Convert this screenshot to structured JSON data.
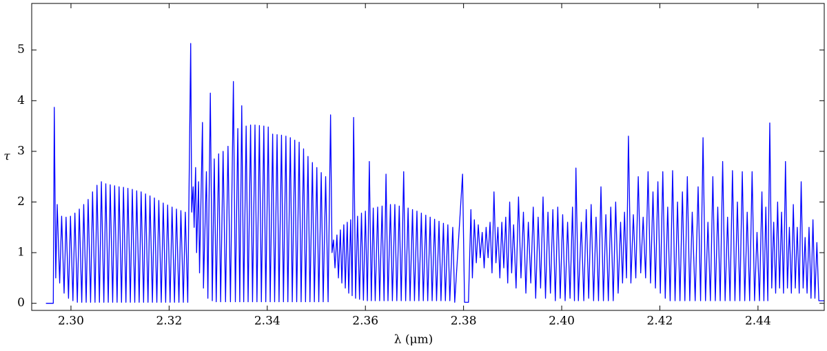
{
  "chart_data": {
    "type": "line",
    "xlabel": "λ (μm)",
    "ylabel": "τ",
    "color": "#0000ff",
    "xlim": [
      2.292,
      2.4535
    ],
    "ylim": [
      -0.14,
      5.92
    ],
    "xticks": [
      {
        "value": 2.3,
        "label": "2.30"
      },
      2.32,
      2.34,
      2.36,
      2.38,
      {
        "value": 2.4,
        "label": "2.40"
      },
      2.42,
      2.44
    ],
    "yticks": [
      0,
      1,
      2,
      3,
      4,
      5
    ],
    "x": [
      2.2949,
      2.2964,
      2.2966,
      2.2969,
      2.2972,
      2.2977,
      2.2981,
      2.2986,
      2.299,
      2.2995,
      2.2999,
      2.3004,
      2.3008,
      2.3013,
      2.3017,
      2.3022,
      2.3026,
      2.3031,
      2.3035,
      2.304,
      2.3044,
      2.3049,
      2.3053,
      2.3058,
      2.3062,
      2.3067,
      2.3071,
      2.3076,
      2.308,
      2.3085,
      2.3089,
      2.3094,
      2.3098,
      2.3103,
      2.3107,
      2.3112,
      2.3116,
      2.3121,
      2.3125,
      2.313,
      2.3134,
      2.3139,
      2.3143,
      2.3148,
      2.3152,
      2.3157,
      2.3161,
      2.3166,
      2.317,
      2.3175,
      2.3179,
      2.3184,
      2.3188,
      2.3193,
      2.3197,
      2.3202,
      2.3206,
      2.3211,
      2.3215,
      2.322,
      2.3224,
      2.3229,
      2.3233,
      2.3238,
      2.3244,
      2.3246,
      2.3249,
      2.3251,
      2.3254,
      2.3256,
      2.326,
      2.3262,
      2.3268,
      2.327,
      2.3276,
      2.3279,
      2.3284,
      2.3288,
      2.3292,
      2.3296,
      2.3301,
      2.3305,
      2.331,
      2.3315,
      2.332,
      2.3325,
      2.3331,
      2.3335,
      2.334,
      2.3344,
      2.3348,
      2.3352,
      2.3357,
      2.3361,
      2.3366,
      2.337,
      2.3375,
      2.3379,
      2.3384,
      2.3388,
      2.3393,
      2.3397,
      2.3402,
      2.3406,
      2.3411,
      2.3415,
      2.342,
      2.3424,
      2.3429,
      2.3433,
      2.3438,
      2.3442,
      2.3447,
      2.3451,
      2.3456,
      2.346,
      2.3465,
      2.3469,
      2.3474,
      2.3478,
      2.3483,
      2.3487,
      2.3492,
      2.3496,
      2.3501,
      2.3505,
      2.351,
      2.3514,
      2.3519,
      2.3524,
      2.3529,
      2.3532,
      2.3535,
      2.3538,
      2.3542,
      2.3545,
      2.3549,
      2.3552,
      2.3556,
      2.3559,
      2.3563,
      2.3566,
      2.357,
      2.3573,
      2.3576,
      2.358,
      2.3584,
      2.3588,
      2.3592,
      2.3596,
      2.36,
      2.3604,
      2.3608,
      2.3612,
      2.3616,
      2.362,
      2.3625,
      2.3629,
      2.3634,
      2.3638,
      2.3642,
      2.3646,
      2.3651,
      2.3655,
      2.366,
      2.3664,
      2.3669,
      2.3673,
      2.3678,
      2.3682,
      2.3687,
      2.3691,
      2.3696,
      2.37,
      2.3705,
      2.3709,
      2.3714,
      2.3718,
      2.3723,
      2.3727,
      2.3732,
      2.3736,
      2.3741,
      2.3745,
      2.375,
      2.3754,
      2.3759,
      2.3763,
      2.3768,
      2.3772,
      2.3778,
      2.3782,
      2.3798,
      2.3802,
      2.381,
      2.3815,
      2.3818,
      2.3822,
      2.3826,
      2.383,
      2.3834,
      2.3838,
      2.3842,
      2.3846,
      2.385,
      2.3854,
      2.3858,
      2.3862,
      2.3866,
      2.387,
      2.3874,
      2.3878,
      2.3882,
      2.3886,
      2.389,
      2.3894,
      2.3898,
      2.3902,
      2.3907,
      2.3912,
      2.3917,
      2.3922,
      2.3927,
      2.3932,
      2.3937,
      2.3942,
      2.3947,
      2.3952,
      2.3957,
      2.3962,
      2.3967,
      2.3972,
      2.3977,
      2.3982,
      2.3987,
      2.3992,
      2.3997,
      2.4002,
      2.4007,
      2.4012,
      2.4017,
      2.4022,
      2.4026,
      2.4029,
      2.4034,
      2.404,
      2.4045,
      2.405,
      2.4055,
      2.406,
      2.4065,
      2.407,
      2.4075,
      2.408,
      2.4085,
      2.409,
      2.4095,
      2.41,
      2.4105,
      2.411,
      2.4115,
      2.412,
      2.4124,
      2.4128,
      2.4132,
      2.4136,
      2.4141,
      2.4146,
      2.4151,
      2.4156,
      2.4161,
      2.4166,
      2.4171,
      2.4176,
      2.4181,
      2.4186,
      2.4191,
      2.4196,
      2.4201,
      2.4206,
      2.4211,
      2.4216,
      2.4221,
      2.4226,
      2.4231,
      2.4236,
      2.4241,
      2.4246,
      2.4251,
      2.4256,
      2.4261,
      2.4266,
      2.4272,
      2.4278,
      2.4283,
      2.4288,
      2.4293,
      2.4298,
      2.4303,
      2.4308,
      2.4313,
      2.4318,
      2.4323,
      2.4328,
      2.4333,
      2.4338,
      2.4343,
      2.4348,
      2.4353,
      2.4358,
      2.4363,
      2.4368,
      2.4373,
      2.4378,
      2.4383,
      2.4388,
      2.4393,
      2.4398,
      2.4403,
      2.4408,
      2.4412,
      2.4416,
      2.442,
      2.4424,
      2.4428,
      2.4432,
      2.4436,
      2.444,
      2.4444,
      2.4448,
      2.4452,
      2.4456,
      2.446,
      2.4464,
      2.4468,
      2.4472,
      2.4476,
      2.448,
      2.4484,
      2.4488,
      2.4492,
      2.4496,
      2.45,
      2.4504,
      2.4508,
      2.4512,
      2.4516,
      2.452,
      2.4524,
      2.4535
    ],
    "values": [
      0,
      0,
      3.87,
      0.5,
      1.95,
      0.4,
      1.72,
      0.2,
      1.7,
      0.1,
      1.72,
      0.05,
      1.78,
      0.02,
      1.86,
      0.02,
      1.95,
      0.02,
      2.05,
      0.02,
      2.2,
      0.02,
      2.33,
      0.02,
      2.4,
      0.02,
      2.36,
      0.02,
      2.34,
      0.02,
      2.32,
      0.02,
      2.3,
      0.02,
      2.29,
      0.02,
      2.27,
      0.02,
      2.25,
      0.02,
      2.22,
      0.02,
      2.2,
      0.02,
      2.16,
      0.02,
      2.12,
      0.02,
      2.08,
      0.02,
      2.03,
      0.02,
      1.98,
      0.02,
      1.94,
      0.02,
      1.9,
      0.02,
      1.86,
      0.02,
      1.83,
      0.02,
      1.8,
      0.02,
      5.13,
      1.8,
      2.3,
      1.5,
      2.68,
      1.0,
      2.4,
      0.6,
      3.57,
      0.3,
      2.6,
      0.1,
      4.15,
      0.05,
      2.85,
      0.03,
      2.95,
      0.03,
      3.0,
      0.03,
      3.1,
      0.03,
      4.38,
      0.03,
      3.45,
      0.03,
      3.9,
      0.03,
      3.5,
      0.03,
      3.52,
      0.03,
      3.52,
      0.03,
      3.51,
      0.03,
      3.5,
      0.03,
      3.48,
      0.03,
      3.34,
      0.03,
      3.33,
      0.03,
      3.32,
      0.03,
      3.3,
      0.03,
      3.27,
      0.03,
      3.22,
      0.03,
      3.18,
      0.03,
      3.05,
      0.03,
      2.9,
      0.03,
      2.78,
      0.03,
      2.68,
      0.03,
      2.58,
      0.03,
      2.5,
      0.03,
      3.72,
      1.0,
      1.25,
      0.7,
      1.35,
      0.5,
      1.45,
      0.4,
      1.55,
      0.3,
      1.6,
      0.2,
      1.65,
      0.15,
      3.67,
      0.1,
      1.72,
      0.08,
      1.78,
      0.06,
      1.82,
      0.05,
      2.8,
      0.05,
      1.88,
      0.05,
      1.9,
      0.05,
      1.92,
      0.05,
      2.55,
      0.05,
      1.95,
      0.05,
      1.95,
      0.05,
      1.92,
      0.05,
      2.6,
      0.05,
      1.88,
      0.05,
      1.85,
      0.05,
      1.82,
      0.05,
      1.78,
      0.05,
      1.74,
      0.05,
      1.7,
      0.05,
      1.66,
      0.05,
      1.62,
      0.05,
      1.58,
      0.05,
      1.55,
      0.05,
      1.5,
      0.02,
      2.55,
      0.02,
      0.02,
      1.85,
      0.5,
      1.65,
      0.8,
      1.55,
      0.9,
      1.4,
      0.7,
      1.5,
      0.9,
      1.6,
      0.6,
      2.2,
      0.8,
      1.5,
      0.5,
      1.6,
      0.7,
      1.7,
      0.4,
      2.0,
      0.6,
      1.55,
      0.3,
      2.1,
      0.5,
      1.8,
      0.2,
      1.6,
      0.4,
      1.9,
      0.1,
      1.7,
      0.3,
      2.1,
      0.1,
      1.8,
      0.2,
      1.85,
      0.05,
      1.9,
      0.1,
      1.75,
      0.05,
      1.6,
      0.1,
      1.9,
      0.05,
      2.67,
      0.05,
      1.6,
      0.05,
      1.85,
      0.1,
      1.95,
      0.05,
      1.7,
      0.05,
      2.3,
      0.05,
      1.75,
      0.05,
      1.9,
      0.05,
      2.0,
      0.2,
      1.6,
      0.4,
      1.8,
      0.5,
      3.3,
      0.4,
      1.75,
      0.5,
      2.5,
      0.6,
      1.7,
      0.5,
      2.6,
      0.4,
      2.2,
      0.3,
      2.4,
      0.2,
      2.6,
      0.1,
      1.9,
      0.05,
      2.62,
      0.05,
      2.0,
      0.05,
      2.2,
      0.05,
      2.5,
      0.05,
      1.8,
      0.05,
      2.3,
      0.05,
      3.27,
      0.05,
      1.6,
      0.05,
      2.5,
      0.05,
      1.9,
      0.05,
      2.8,
      0.05,
      1.7,
      0.05,
      2.62,
      0.05,
      2.0,
      0.05,
      2.6,
      0.05,
      1.8,
      0.05,
      2.6,
      0.05,
      1.4,
      0.05,
      2.2,
      0.05,
      1.9,
      0.05,
      3.56,
      0.3,
      1.6,
      0.2,
      2.0,
      0.3,
      1.8,
      0.2,
      2.8,
      0.3,
      1.5,
      0.2,
      1.95,
      0.3,
      1.5,
      0.2,
      2.4,
      0.3,
      1.3,
      0.2,
      1.5,
      0.1,
      1.65,
      0.1,
      1.2,
      0.05,
      0.05
    ]
  }
}
